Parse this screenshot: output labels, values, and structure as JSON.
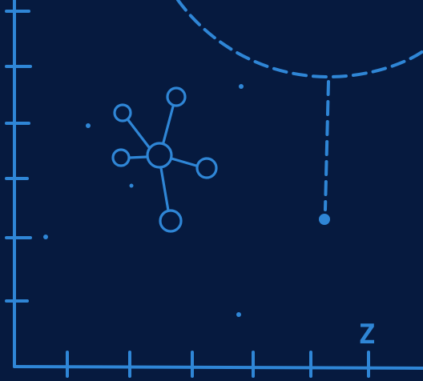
{
  "axis": {
    "z_label": "Z"
  },
  "colors": {
    "background": "#061a3f",
    "ink": "#2f86d6"
  }
}
